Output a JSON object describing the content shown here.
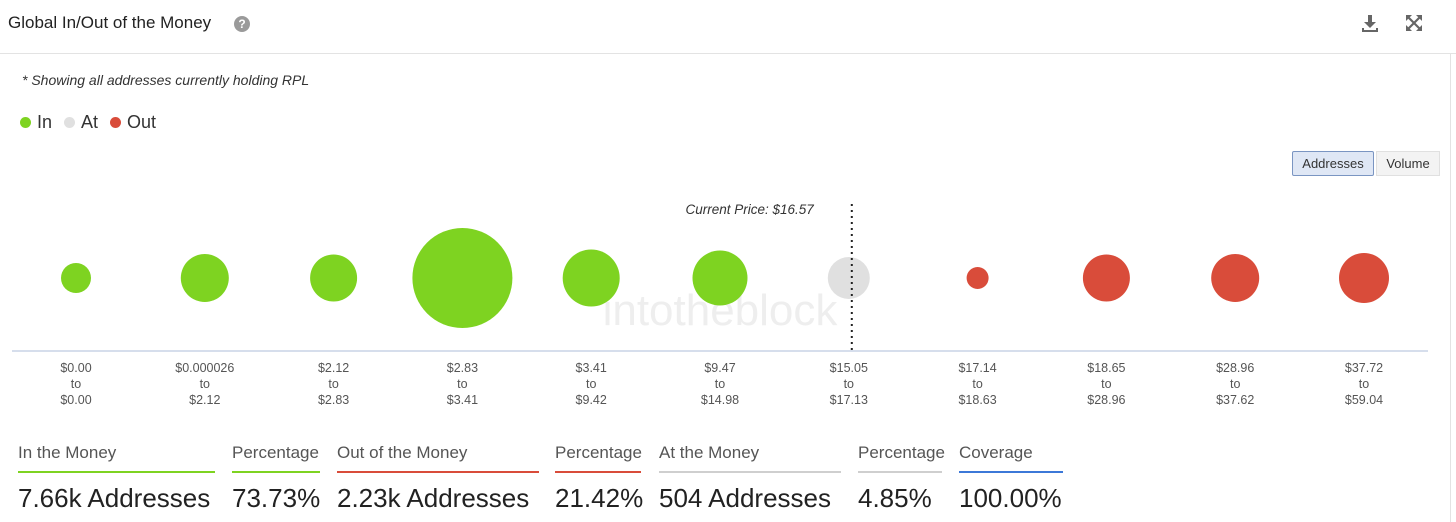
{
  "header": {
    "title": "Global In/Out of the Money",
    "help_icon": "?"
  },
  "subtitle": "* Showing all addresses currently holding RPL",
  "legend": [
    {
      "label": "In",
      "color": "#7ed321"
    },
    {
      "label": "At",
      "color": "#e0e0e0"
    },
    {
      "label": "Out",
      "color": "#d94c3a"
    }
  ],
  "toggles": {
    "addresses": "Addresses",
    "volume": "Volume",
    "active": "addresses"
  },
  "chart_data": {
    "type": "bubble",
    "current_price_label": "Current Price: $16.57",
    "current_price_bucket_index": 6,
    "watermark": "intotheblock",
    "buckets": [
      {
        "from": "$0.00",
        "to": "$0.00",
        "status": "in",
        "size": 0.3
      },
      {
        "from": "$0.000026",
        "to": "$2.12",
        "status": "in",
        "size": 0.48
      },
      {
        "from": "$2.12",
        "to": "$2.83",
        "status": "in",
        "size": 0.47
      },
      {
        "from": "$2.83",
        "to": "$3.41",
        "status": "in",
        "size": 1.0
      },
      {
        "from": "$3.41",
        "to": "$9.42",
        "status": "in",
        "size": 0.57
      },
      {
        "from": "$9.47",
        "to": "$14.98",
        "status": "in",
        "size": 0.55
      },
      {
        "from": "$15.05",
        "to": "$17.13",
        "status": "at",
        "size": 0.42
      },
      {
        "from": "$17.14",
        "to": "$18.63",
        "status": "out",
        "size": 0.22
      },
      {
        "from": "$18.65",
        "to": "$28.96",
        "status": "out",
        "size": 0.47
      },
      {
        "from": "$28.96",
        "to": "$37.62",
        "status": "out",
        "size": 0.48
      },
      {
        "from": "$37.72",
        "to": "$59.04",
        "status": "out",
        "size": 0.5
      }
    ],
    "to_word": "to"
  },
  "colors": {
    "in": "#7ed321",
    "at": "#e0e0e0",
    "out": "#d94c3a",
    "coverage": "#3c78d8",
    "axis": "#c8d3e6"
  },
  "summary": {
    "in_label": "In the Money",
    "in_value": "7.66k Addresses",
    "in_pct_label": "Percentage",
    "in_pct": "73.73%",
    "out_label": "Out of the Money",
    "out_value": "2.23k Addresses",
    "out_pct_label": "Percentage",
    "out_pct": "21.42%",
    "at_label": "At the Money",
    "at_value": "504 Addresses",
    "at_pct_label": "Percentage",
    "at_pct": "4.85%",
    "coverage_label": "Coverage",
    "coverage_value": "100.00%"
  }
}
